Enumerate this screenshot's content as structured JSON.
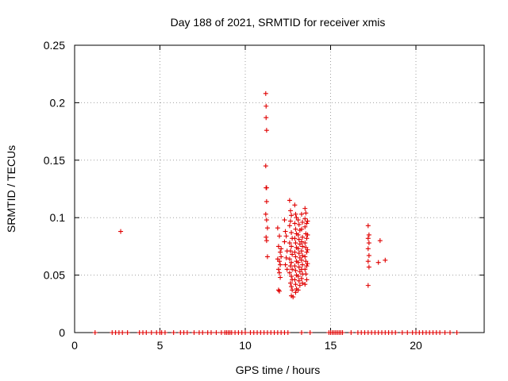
{
  "chart_data": {
    "type": "scatter",
    "title": "Day 188 of 2021, SRMTID for receiver xmis",
    "xlabel": "GPS time / hours",
    "ylabel": "SRMTID / TECUs",
    "xlim": [
      0,
      24
    ],
    "ylim": [
      0,
      0.25
    ],
    "xticks": [
      0,
      5,
      10,
      15,
      20
    ],
    "xtick_labels": [
      "0",
      "5",
      "10",
      "15",
      "20"
    ],
    "yticks": [
      0,
      0.05,
      0.1,
      0.15,
      0.2,
      0.25
    ],
    "ytick_labels": [
      "0",
      "0.05",
      "0.1",
      "0.15",
      "0.2",
      "0.25"
    ],
    "grid": true,
    "marker": "+",
    "color": "#e00000",
    "series": [
      {
        "name": "SRMTID",
        "points": [
          [
            2.7,
            0.088
          ],
          [
            11.2,
            0.208
          ],
          [
            11.22,
            0.197
          ],
          [
            11.22,
            0.187
          ],
          [
            11.25,
            0.176
          ],
          [
            11.2,
            0.145
          ],
          [
            11.22,
            0.126
          ],
          [
            11.25,
            0.126
          ],
          [
            11.25,
            0.114
          ],
          [
            11.2,
            0.103
          ],
          [
            11.25,
            0.098
          ],
          [
            11.3,
            0.091
          ],
          [
            11.22,
            0.083
          ],
          [
            11.25,
            0.08
          ],
          [
            11.3,
            0.066
          ],
          [
            11.9,
            0.091
          ],
          [
            12.0,
            0.084
          ],
          [
            11.95,
            0.075
          ],
          [
            12.05,
            0.07
          ],
          [
            11.9,
            0.064
          ],
          [
            12.0,
            0.062
          ],
          [
            12.05,
            0.059
          ],
          [
            11.95,
            0.055
          ],
          [
            12.0,
            0.052
          ],
          [
            12.05,
            0.048
          ],
          [
            11.95,
            0.037
          ],
          [
            12.0,
            0.036
          ],
          [
            12.1,
            0.073
          ],
          [
            12.1,
            0.066
          ],
          [
            12.3,
            0.098
          ],
          [
            12.35,
            0.088
          ],
          [
            12.4,
            0.084
          ],
          [
            12.3,
            0.079
          ],
          [
            12.45,
            0.071
          ],
          [
            12.4,
            0.065
          ],
          [
            12.35,
            0.059
          ],
          [
            12.45,
            0.055
          ],
          [
            12.6,
            0.115
          ],
          [
            12.65,
            0.106
          ],
          [
            12.7,
            0.102
          ],
          [
            12.65,
            0.097
          ],
          [
            12.6,
            0.093
          ],
          [
            12.7,
            0.087
          ],
          [
            12.75,
            0.082
          ],
          [
            12.6,
            0.078
          ],
          [
            12.7,
            0.075
          ],
          [
            12.65,
            0.071
          ],
          [
            12.75,
            0.068
          ],
          [
            12.6,
            0.064
          ],
          [
            12.7,
            0.061
          ],
          [
            12.65,
            0.058
          ],
          [
            12.75,
            0.055
          ],
          [
            12.6,
            0.052
          ],
          [
            12.7,
            0.049
          ],
          [
            12.75,
            0.046
          ],
          [
            12.65,
            0.043
          ],
          [
            12.7,
            0.04
          ],
          [
            12.75,
            0.037
          ],
          [
            12.7,
            0.032
          ],
          [
            12.8,
            0.031
          ],
          [
            12.9,
            0.111
          ],
          [
            12.95,
            0.103
          ],
          [
            13.0,
            0.1
          ],
          [
            12.9,
            0.095
          ],
          [
            12.95,
            0.09
          ],
          [
            13.0,
            0.086
          ],
          [
            12.9,
            0.082
          ],
          [
            12.95,
            0.078
          ],
          [
            13.0,
            0.074
          ],
          [
            12.9,
            0.07
          ],
          [
            12.95,
            0.066
          ],
          [
            13.0,
            0.062
          ],
          [
            12.9,
            0.058
          ],
          [
            12.95,
            0.054
          ],
          [
            13.0,
            0.05
          ],
          [
            12.9,
            0.046
          ],
          [
            12.95,
            0.042
          ],
          [
            13.0,
            0.038
          ],
          [
            12.95,
            0.035
          ],
          [
            13.1,
            0.098
          ],
          [
            13.15,
            0.094
          ],
          [
            13.2,
            0.089
          ],
          [
            13.1,
            0.085
          ],
          [
            13.15,
            0.081
          ],
          [
            13.2,
            0.077
          ],
          [
            13.1,
            0.073
          ],
          [
            13.15,
            0.069
          ],
          [
            13.2,
            0.065
          ],
          [
            13.1,
            0.061
          ],
          [
            13.15,
            0.057
          ],
          [
            13.2,
            0.053
          ],
          [
            13.1,
            0.049
          ],
          [
            13.15,
            0.045
          ],
          [
            13.2,
            0.041
          ],
          [
            13.1,
            0.037
          ],
          [
            13.3,
            0.103
          ],
          [
            13.35,
            0.096
          ],
          [
            13.3,
            0.09
          ],
          [
            13.35,
            0.083
          ],
          [
            13.3,
            0.079
          ],
          [
            13.35,
            0.075
          ],
          [
            13.3,
            0.071
          ],
          [
            13.35,
            0.067
          ],
          [
            13.3,
            0.063
          ],
          [
            13.35,
            0.059
          ],
          [
            13.3,
            0.055
          ],
          [
            13.35,
            0.051
          ],
          [
            13.3,
            0.047
          ],
          [
            13.35,
            0.043
          ],
          [
            13.5,
            0.108
          ],
          [
            13.55,
            0.104
          ],
          [
            13.5,
            0.099
          ],
          [
            13.6,
            0.095
          ],
          [
            13.5,
            0.092
          ],
          [
            13.55,
            0.086
          ],
          [
            13.6,
            0.082
          ],
          [
            13.5,
            0.078
          ],
          [
            13.55,
            0.074
          ],
          [
            13.6,
            0.07
          ],
          [
            13.5,
            0.066
          ],
          [
            13.55,
            0.062
          ],
          [
            13.6,
            0.058
          ],
          [
            13.5,
            0.055
          ],
          [
            13.55,
            0.051
          ],
          [
            13.6,
            0.046
          ],
          [
            13.5,
            0.042
          ],
          [
            13.65,
            0.097
          ],
          [
            13.65,
            0.085
          ],
          [
            13.65,
            0.072
          ],
          [
            13.65,
            0.06
          ],
          [
            17.2,
            0.093
          ],
          [
            17.25,
            0.085
          ],
          [
            17.2,
            0.082
          ],
          [
            17.25,
            0.078
          ],
          [
            17.2,
            0.073
          ],
          [
            17.25,
            0.067
          ],
          [
            17.2,
            0.062
          ],
          [
            17.25,
            0.057
          ],
          [
            17.2,
            0.041
          ],
          [
            17.9,
            0.08
          ],
          [
            17.8,
            0.061
          ],
          [
            18.2,
            0.063
          ],
          [
            1.2,
            0
          ],
          [
            2.2,
            0
          ],
          [
            2.4,
            0
          ],
          [
            2.6,
            0
          ],
          [
            2.8,
            0
          ],
          [
            3.1,
            0
          ],
          [
            3.8,
            0
          ],
          [
            4.0,
            0
          ],
          [
            4.2,
            0
          ],
          [
            4.5,
            0
          ],
          [
            4.8,
            0
          ],
          [
            5.0,
            0
          ],
          [
            5.1,
            0
          ],
          [
            5.3,
            0
          ],
          [
            5.8,
            0
          ],
          [
            6.2,
            0
          ],
          [
            6.4,
            0
          ],
          [
            6.6,
            0
          ],
          [
            7.0,
            0
          ],
          [
            7.3,
            0
          ],
          [
            7.5,
            0
          ],
          [
            7.8,
            0
          ],
          [
            8.0,
            0
          ],
          [
            8.3,
            0
          ],
          [
            8.6,
            0
          ],
          [
            8.8,
            0
          ],
          [
            8.9,
            0
          ],
          [
            9.0,
            0
          ],
          [
            9.1,
            0
          ],
          [
            9.2,
            0
          ],
          [
            9.4,
            0
          ],
          [
            9.6,
            0
          ],
          [
            9.8,
            0
          ],
          [
            10.0,
            0
          ],
          [
            10.3,
            0
          ],
          [
            10.5,
            0
          ],
          [
            10.7,
            0
          ],
          [
            10.9,
            0
          ],
          [
            11.1,
            0
          ],
          [
            11.3,
            0
          ],
          [
            11.5,
            0
          ],
          [
            11.7,
            0
          ],
          [
            11.9,
            0
          ],
          [
            12.1,
            0
          ],
          [
            12.3,
            0
          ],
          [
            12.5,
            0
          ],
          [
            13.3,
            0
          ],
          [
            13.8,
            0
          ],
          [
            14.9,
            0
          ],
          [
            15.0,
            0
          ],
          [
            15.1,
            0
          ],
          [
            15.2,
            0
          ],
          [
            15.3,
            0
          ],
          [
            15.4,
            0
          ],
          [
            15.5,
            0
          ],
          [
            15.6,
            0
          ],
          [
            15.7,
            0
          ],
          [
            16.2,
            0
          ],
          [
            16.6,
            0
          ],
          [
            16.8,
            0
          ],
          [
            17.0,
            0
          ],
          [
            17.2,
            0
          ],
          [
            17.4,
            0
          ],
          [
            17.6,
            0
          ],
          [
            17.8,
            0
          ],
          [
            18.0,
            0
          ],
          [
            18.2,
            0
          ],
          [
            18.4,
            0
          ],
          [
            18.6,
            0
          ],
          [
            18.8,
            0
          ],
          [
            19.2,
            0
          ],
          [
            19.5,
            0
          ],
          [
            19.8,
            0
          ],
          [
            20.0,
            0
          ],
          [
            20.2,
            0
          ],
          [
            20.4,
            0
          ],
          [
            20.6,
            0
          ],
          [
            20.8,
            0
          ],
          [
            21.0,
            0
          ],
          [
            21.2,
            0
          ],
          [
            21.4,
            0
          ],
          [
            21.7,
            0
          ],
          [
            22.0,
            0
          ],
          [
            22.4,
            0
          ]
        ]
      }
    ]
  }
}
